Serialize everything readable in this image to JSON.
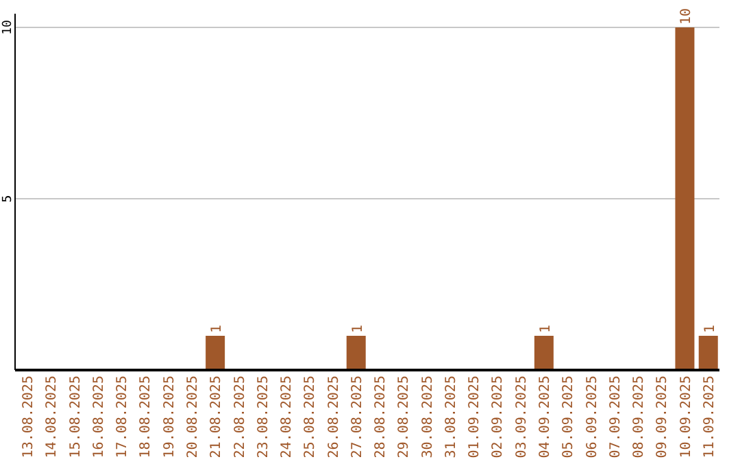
{
  "chart_data": {
    "type": "bar",
    "categories": [
      "13.08.2025",
      "14.08.2025",
      "15.08.2025",
      "16.08.2025",
      "17.08.2025",
      "18.08.2025",
      "19.08.2025",
      "20.08.2025",
      "21.08.2025",
      "22.08.2025",
      "23.08.2025",
      "24.08.2025",
      "25.08.2025",
      "26.08.2025",
      "27.08.2025",
      "28.08.2025",
      "29.08.2025",
      "30.08.2025",
      "31.08.2025",
      "01.09.2025",
      "02.09.2025",
      "03.09.2025",
      "04.09.2025",
      "05.09.2025",
      "06.09.2025",
      "07.09.2025",
      "08.09.2025",
      "09.09.2025",
      "10.09.2025",
      "11.09.2025"
    ],
    "values": [
      0,
      0,
      0,
      0,
      0,
      0,
      0,
      0,
      1,
      0,
      0,
      0,
      0,
      0,
      1,
      0,
      0,
      0,
      0,
      0,
      0,
      0,
      1,
      0,
      0,
      0,
      0,
      0,
      10,
      1
    ],
    "value_labels": [
      null,
      null,
      null,
      null,
      null,
      null,
      null,
      null,
      "1",
      null,
      null,
      null,
      null,
      null,
      "1",
      null,
      null,
      null,
      null,
      null,
      null,
      null,
      "1",
      null,
      null,
      null,
      null,
      null,
      "10",
      "1"
    ],
    "color": "#a0582a",
    "ylim": [
      0,
      10.4
    ],
    "yticks": [
      5,
      10
    ],
    "grid": "y"
  }
}
